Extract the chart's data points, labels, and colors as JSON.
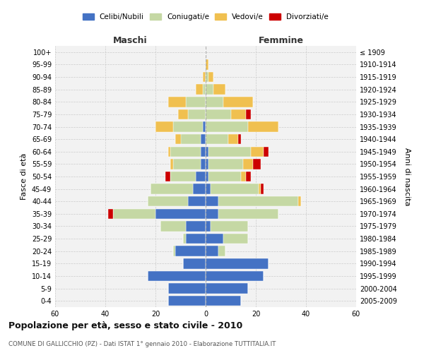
{
  "age_groups": [
    "0-4",
    "5-9",
    "10-14",
    "15-19",
    "20-24",
    "25-29",
    "30-34",
    "35-39",
    "40-44",
    "45-49",
    "50-54",
    "55-59",
    "60-64",
    "65-69",
    "70-74",
    "75-79",
    "80-84",
    "85-89",
    "90-94",
    "95-99",
    "100+"
  ],
  "birth_years": [
    "2005-2009",
    "2000-2004",
    "1995-1999",
    "1990-1994",
    "1985-1989",
    "1980-1984",
    "1975-1979",
    "1970-1974",
    "1965-1969",
    "1960-1964",
    "1955-1959",
    "1950-1954",
    "1945-1949",
    "1940-1944",
    "1935-1939",
    "1930-1934",
    "1925-1929",
    "1920-1924",
    "1915-1919",
    "1910-1914",
    "≤ 1909"
  ],
  "colors": {
    "celibi": "#4472C4",
    "coniugati": "#C5D8A4",
    "vedovi": "#F0C050",
    "divorziati": "#CC0000"
  },
  "maschi": {
    "celibi": [
      15,
      15,
      23,
      9,
      12,
      8,
      8,
      20,
      7,
      5,
      4,
      2,
      2,
      2,
      1,
      0,
      0,
      0,
      0,
      0,
      0
    ],
    "coniugati": [
      0,
      0,
      0,
      0,
      1,
      1,
      10,
      17,
      16,
      17,
      10,
      11,
      12,
      8,
      12,
      7,
      8,
      1,
      0,
      0,
      0
    ],
    "vedovi": [
      0,
      0,
      0,
      0,
      0,
      0,
      0,
      0,
      0,
      0,
      0,
      1,
      1,
      2,
      7,
      4,
      7,
      3,
      1,
      0,
      0
    ],
    "divorziati": [
      0,
      0,
      0,
      0,
      0,
      0,
      0,
      2,
      0,
      0,
      2,
      0,
      0,
      0,
      0,
      0,
      0,
      0,
      0,
      0,
      0
    ]
  },
  "femmine": {
    "celibi": [
      14,
      17,
      23,
      25,
      5,
      7,
      2,
      5,
      5,
      2,
      1,
      1,
      1,
      0,
      0,
      0,
      0,
      0,
      0,
      0,
      0
    ],
    "coniugati": [
      0,
      0,
      0,
      0,
      3,
      10,
      15,
      24,
      32,
      19,
      13,
      14,
      17,
      9,
      17,
      10,
      7,
      3,
      1,
      0,
      0
    ],
    "vedovi": [
      0,
      0,
      0,
      0,
      0,
      0,
      0,
      0,
      1,
      1,
      2,
      4,
      5,
      4,
      12,
      6,
      12,
      5,
      2,
      1,
      0
    ],
    "divorziati": [
      0,
      0,
      0,
      0,
      0,
      0,
      0,
      0,
      0,
      1,
      2,
      3,
      2,
      1,
      0,
      2,
      0,
      0,
      0,
      0,
      0
    ]
  },
  "title": "Popolazione per età, sesso e stato civile - 2010",
  "subtitle": "COMUNE DI GALLICCHIO (PZ) - Dati ISTAT 1° gennaio 2010 - Elaborazione TUTTITALIA.IT",
  "xlabel_left": "Maschi",
  "xlabel_right": "Femmine",
  "ylabel_left": "Fasce di età",
  "ylabel_right": "Anni di nascita",
  "xlim": 60
}
